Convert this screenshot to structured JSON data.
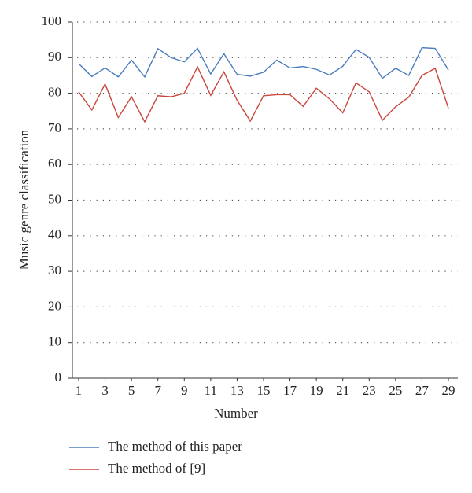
{
  "chart_data": {
    "type": "line",
    "x_label": "Number",
    "y_label": "Music genre classification",
    "x": [
      1,
      2,
      3,
      4,
      5,
      6,
      7,
      8,
      9,
      10,
      11,
      12,
      13,
      14,
      15,
      16,
      17,
      18,
      19,
      20,
      21,
      22,
      23,
      24,
      25,
      26,
      27,
      28,
      29
    ],
    "series": [
      {
        "name": "The method of this paper",
        "color": "#4a7dbf",
        "values": [
          88.3,
          84.7,
          87.1,
          84.6,
          89.3,
          84.6,
          92.5,
          90,
          88.8,
          92.6,
          85.4,
          91.1,
          85.3,
          84.8,
          85.9,
          89.3,
          87.1,
          87.5,
          86.7,
          85.1,
          87.6,
          92.3,
          90.1,
          84.2,
          87,
          85,
          92.8,
          92.6,
          86.5
        ]
      },
      {
        "name": "The method of [9]",
        "color": "#c9463d",
        "values": [
          80.4,
          75.3,
          82.6,
          73.2,
          79,
          72,
          79.3,
          79,
          80,
          87.4,
          79.4,
          86,
          78,
          72.2,
          79.3,
          79.6,
          79.6,
          76.3,
          81.4,
          78.4,
          74.5,
          82.9,
          80.4,
          72.4,
          76.2,
          78.9,
          85,
          87,
          75.8
        ]
      }
    ],
    "xlim": [
      1,
      29
    ],
    "xticks": [
      1,
      3,
      5,
      7,
      9,
      11,
      13,
      15,
      17,
      19,
      21,
      23,
      25,
      27,
      29
    ],
    "ylim": [
      0,
      100
    ],
    "yticks": [
      0,
      10,
      20,
      30,
      40,
      50,
      60,
      70,
      80,
      90,
      100
    ],
    "grid": true
  }
}
